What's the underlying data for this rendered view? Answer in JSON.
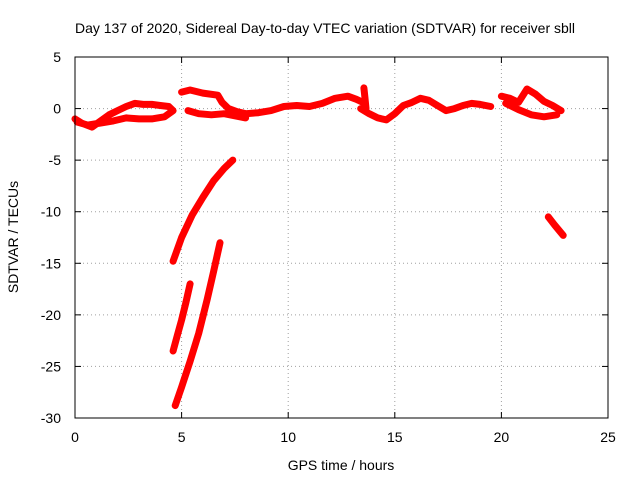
{
  "chart_data": {
    "type": "scatter",
    "title": "Day 137 of 2020, Sidereal Day-to-day VTEC variation (SDTVAR) for receiver sbll",
    "xlabel": "GPS time / hours",
    "ylabel": "SDTVAR / TECUs",
    "xlim": [
      0,
      25
    ],
    "ylim": [
      -30,
      5
    ],
    "xticks": [
      0,
      5,
      10,
      15,
      20,
      25
    ],
    "yticks": [
      5,
      0,
      -5,
      -10,
      -15,
      -20,
      -25,
      -30
    ],
    "grid": true,
    "marker": "+",
    "color": "#ff0000",
    "series": [
      {
        "name": "band-0-4.8h",
        "x": [
          0.0,
          0.3,
          0.8,
          1.2,
          1.6,
          2.0,
          2.4,
          2.8,
          3.2,
          3.6,
          4.0,
          4.4,
          4.6,
          4.2,
          3.6,
          3.0,
          2.4,
          1.8,
          1.2,
          0.6,
          0.1
        ],
        "y": [
          -1.0,
          -1.4,
          -1.8,
          -1.2,
          -0.6,
          -0.2,
          0.2,
          0.5,
          0.4,
          0.4,
          0.3,
          0.2,
          -0.2,
          -0.8,
          -1.0,
          -1.0,
          -0.9,
          -1.2,
          -1.4,
          -1.6,
          -1.3
        ]
      },
      {
        "name": "band-5-12h",
        "x": [
          5.0,
          5.4,
          6.0,
          6.7,
          6.9,
          7.2,
          7.6,
          8.0,
          8.6,
          9.2,
          9.8,
          10.4,
          11.0,
          11.6,
          12.2,
          12.8,
          13.2,
          13.6
        ],
        "y": [
          1.6,
          1.8,
          1.5,
          1.3,
          0.6,
          0.0,
          -0.3,
          -0.5,
          -0.4,
          -0.2,
          0.2,
          0.3,
          0.2,
          0.5,
          1.0,
          1.2,
          0.9,
          0.5
        ]
      },
      {
        "name": "band-5-8h-lower",
        "x": [
          5.3,
          5.8,
          6.4,
          7.0,
          7.5,
          8.0
        ],
        "y": [
          -0.2,
          -0.5,
          -0.6,
          -0.5,
          -0.7,
          -0.9
        ]
      },
      {
        "name": "band-13-19.5h",
        "x": [
          13.4,
          13.8,
          14.2,
          14.6,
          15.0,
          15.4,
          15.8,
          16.2,
          16.6,
          17.0,
          17.4,
          17.8,
          18.2,
          18.6,
          19.0,
          19.5
        ],
        "y": [
          0.0,
          -0.5,
          -0.9,
          -1.1,
          -0.5,
          0.3,
          0.6,
          1.0,
          0.8,
          0.3,
          -0.2,
          0.0,
          0.3,
          0.5,
          0.4,
          0.2
        ]
      },
      {
        "name": "band-20-23h",
        "x": [
          20.0,
          20.4,
          20.8,
          21.2,
          21.6,
          22.0,
          22.4,
          22.8
        ],
        "y": [
          1.2,
          1.0,
          0.6,
          1.9,
          1.4,
          0.7,
          0.3,
          -0.2
        ]
      },
      {
        "name": "band-20-23h-lower",
        "x": [
          20.2,
          20.8,
          21.4,
          22.0,
          22.6
        ],
        "y": [
          0.5,
          -0.1,
          -0.6,
          -0.8,
          -0.6
        ]
      },
      {
        "name": "spike-13.6h",
        "x": [
          13.55,
          13.6,
          13.65
        ],
        "y": [
          2.0,
          1.0,
          0.0
        ]
      },
      {
        "name": "track-4.6-7.4h",
        "x": [
          4.6,
          5.0,
          5.5,
          6.0,
          6.5,
          7.0,
          7.4
        ],
        "y": [
          -14.8,
          -12.5,
          -10.3,
          -8.6,
          -7.0,
          -5.8,
          -5.0
        ]
      },
      {
        "name": "track-4.6-5.4h",
        "x": [
          4.6,
          4.8,
          5.0,
          5.2,
          5.4
        ],
        "y": [
          -23.5,
          -22.0,
          -20.5,
          -18.8,
          -17.0
        ]
      },
      {
        "name": "track-4.7-6.8h",
        "x": [
          4.7,
          5.0,
          5.4,
          5.8,
          6.2,
          6.5,
          6.8
        ],
        "y": [
          -28.8,
          -27.0,
          -24.5,
          -21.8,
          -18.5,
          -15.8,
          -13.0
        ]
      },
      {
        "name": "track-22.2-22.9h",
        "x": [
          22.2,
          22.5,
          22.9
        ],
        "y": [
          -10.5,
          -11.3,
          -12.3
        ]
      }
    ]
  }
}
